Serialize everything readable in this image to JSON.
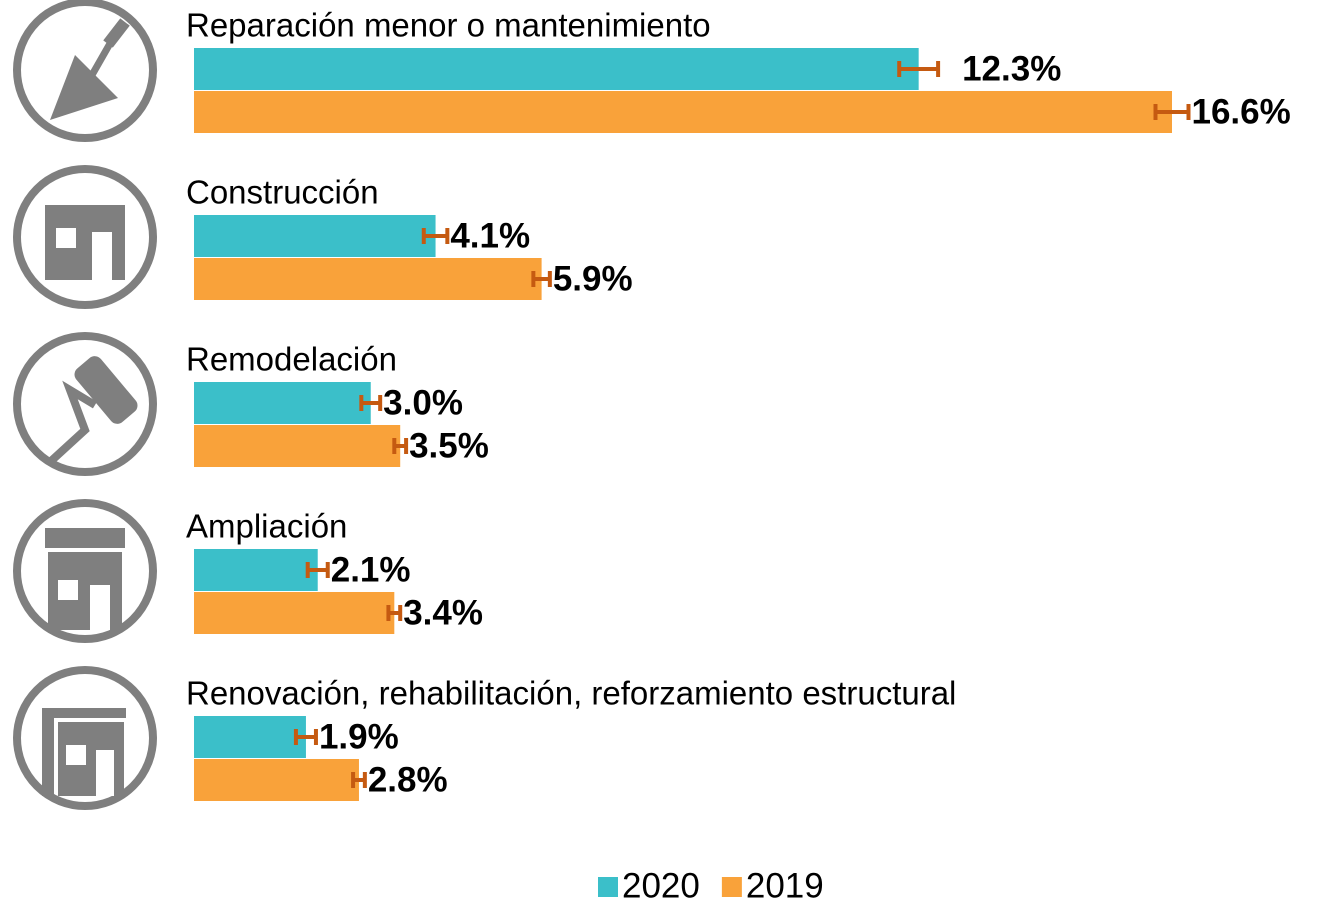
{
  "chart_data": {
    "type": "bar",
    "orientation": "horizontal",
    "categories": [
      "Reparación menor o mantenimiento",
      "Construcción",
      "Remodelación",
      "Ampliación",
      "Renovación, rehabilitación, reforzamiento estructural"
    ],
    "series": [
      {
        "name": "2020",
        "color": "#3bbfc9",
        "values": [
          12.3,
          4.1,
          3.0,
          2.1,
          1.9
        ],
        "value_labels": [
          "12.3%",
          "4.1%",
          "3.0%",
          "2.1%",
          "1.9%"
        ],
        "errors": [
          0.33,
          0.2,
          0.16,
          0.17,
          0.17
        ]
      },
      {
        "name": "2019",
        "color": "#f9a23a",
        "values": [
          16.6,
          5.9,
          3.5,
          3.4,
          2.8
        ],
        "value_labels": [
          "16.6%",
          "5.9%",
          "3.5%",
          "3.4%",
          "2.8%"
        ],
        "errors": [
          0.28,
          0.14,
          0.1,
          0.1,
          0.1
        ]
      }
    ],
    "error_color": "#c55a11",
    "legend": "bottom"
  }
}
